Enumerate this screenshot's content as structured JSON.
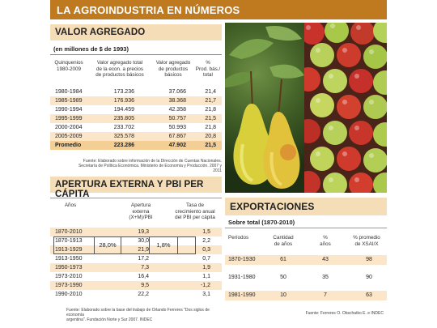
{
  "title": "LA AGROINDUSTRIA EN NÚMEROS",
  "valor": {
    "heading": "VALOR AGREGADO",
    "subheading": "(en millones de $ de 1993)",
    "columns": [
      "Quinquenios\n1980-2009",
      "Valor agregado total\nde la econ. a precios\nde productos básicos",
      "Valor agregado\nde productos\nbásicos",
      "%\nProd. bás./\ntotal"
    ],
    "rows": [
      [
        "1980-1984",
        "173.236",
        "37.066",
        "21,4"
      ],
      [
        "1985-1989",
        "176.936",
        "38.368",
        "21,7"
      ],
      [
        "1990-1994",
        "194.459",
        "42.358",
        "21,8"
      ],
      [
        "1995-1999",
        "235.805",
        "50.757",
        "21,5"
      ],
      [
        "2000-2004",
        "233.702",
        "50.993",
        "21,8"
      ],
      [
        "2005-2009",
        "325.578",
        "67.867",
        "20,8"
      ]
    ],
    "total": [
      "Promedio",
      "223.286",
      "47.902",
      "21,5"
    ],
    "source": "Fuente: Elaborado sobre información de la Dirección de Cuentas Nacionales.\nSecretaría de Política Económica. Ministerio de Economía y Producción. 2007 y 2011"
  },
  "apertura": {
    "heading": "APERTURA EXTERNA Y PBI PER CÁPITA",
    "columns": [
      "Años",
      "Apertura\nexterna\n(X+M)/PBI",
      "Tasa de\ncrecimiento anual\ndel PBI per cápita"
    ],
    "rows": [
      [
        "1870-2010",
        "19,3",
        "1,5"
      ],
      [
        "1870-1913",
        "30,0",
        "2,2"
      ],
      [
        "1913-1929",
        "21,9",
        "0,3"
      ],
      [
        "1913-1950",
        "17,2",
        "0,7"
      ],
      [
        "1950-1973",
        "7,3",
        "1,9"
      ],
      [
        "1973-2010",
        "16,4",
        "1,1"
      ],
      [
        "1973-1990",
        "9,5",
        "-1,2"
      ],
      [
        "1990-2010",
        "22,2",
        "3,1"
      ]
    ],
    "grouped_apertura": "28,0%",
    "grouped_tasa": "1,8%",
    "source": "Fuente: Elaborado sobre la base del trabajo de Orlando Ferreres \"Dos siglos de economía\nargentina\". Fundación Norte y Sur 2007. INDEC"
  },
  "export": {
    "heading": "EXPORTACIONES",
    "subheading": "Sobre total (1870-2010)",
    "columns": [
      "Períodos",
      "Cantidad\nde años",
      "%\naños",
      "% promedio\nde XSAI/X"
    ],
    "rows": [
      [
        "1870-1930",
        "61",
        "43",
        "98"
      ],
      [
        "1931-1980",
        "50",
        "35",
        "90"
      ],
      [
        "1981-1990",
        "10",
        "7",
        "63"
      ]
    ],
    "source": "Fuente: Ferreres O. Obschatko E. e INDEC"
  },
  "colors": {
    "title_bg": "#bf7a20",
    "section_bg": "#f5ddb8",
    "row_alt": "#fbe6c9",
    "row_total": "#f3cf96"
  },
  "icons": {
    "photo": "pears-and-apples-photo"
  }
}
